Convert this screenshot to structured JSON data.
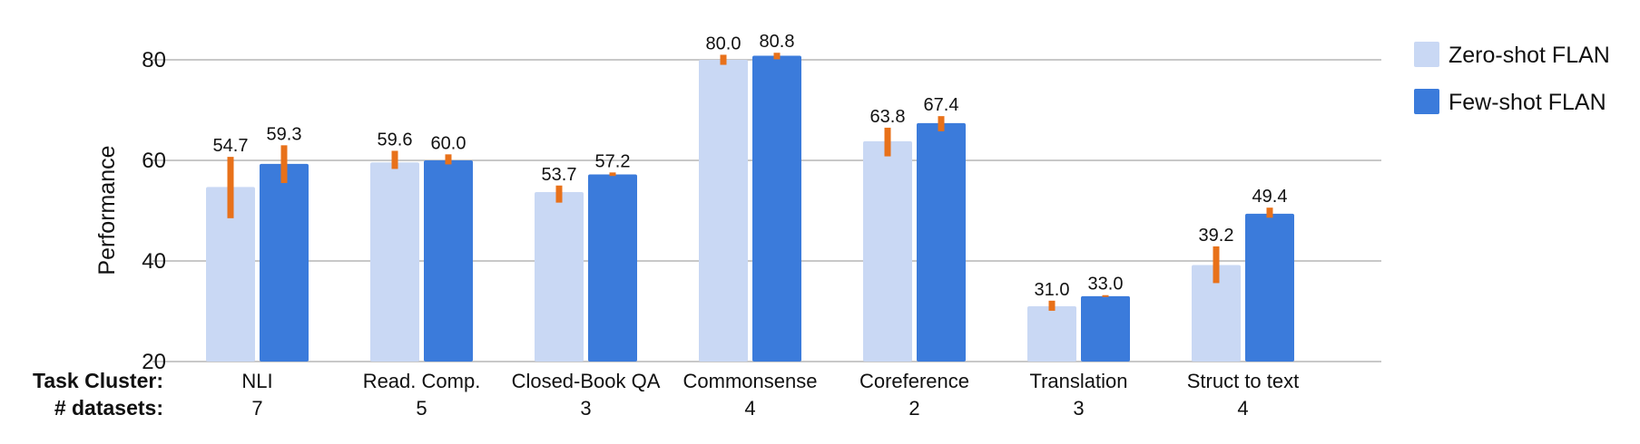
{
  "chart_data": {
    "type": "bar",
    "ylabel": "Performance",
    "ylim": [
      20,
      82
    ],
    "yticks": [
      20,
      40,
      60,
      80
    ],
    "grid": true,
    "legend_position": "top-right",
    "row_labels": [
      "Task Cluster:",
      "# datasets:"
    ],
    "categories": [
      "NLI",
      "Read. Comp.",
      "Closed-Book QA",
      "Commonsense",
      "Coreference",
      "Translation",
      "Struct to text"
    ],
    "datasets": [
      "7",
      "5",
      "3",
      "4",
      "2",
      "3",
      "4"
    ],
    "series": [
      {
        "name": "Zero-shot FLAN",
        "color": "#c9d8f4",
        "values": [
          54.7,
          59.6,
          53.7,
          80.0,
          63.8,
          31.0,
          39.2
        ],
        "labels": [
          "54.7",
          "59.6",
          "53.7",
          "80.0",
          "63.8",
          "31.0",
          "39.2"
        ],
        "error_low": [
          48.5,
          58.3,
          51.6,
          79.0,
          60.8,
          30.1,
          35.6
        ],
        "error_high": [
          60.7,
          61.9,
          55.0,
          81.0,
          66.5,
          32.1,
          42.9
        ]
      },
      {
        "name": "Few-shot FLAN",
        "color": "#3b7bdb",
        "values": [
          59.3,
          60.0,
          57.2,
          80.8,
          67.4,
          33.0,
          49.4
        ],
        "labels": [
          "59.3",
          "60.0",
          "57.2",
          "80.8",
          "67.4",
          "33.0",
          "49.4"
        ],
        "error_low": [
          55.5,
          59.2,
          56.9,
          80.1,
          65.8,
          32.9,
          48.6
        ],
        "error_high": [
          63.0,
          61.2,
          57.6,
          81.4,
          68.8,
          33.2,
          50.6
        ]
      }
    ],
    "error_bar_color": "#e8711a"
  }
}
